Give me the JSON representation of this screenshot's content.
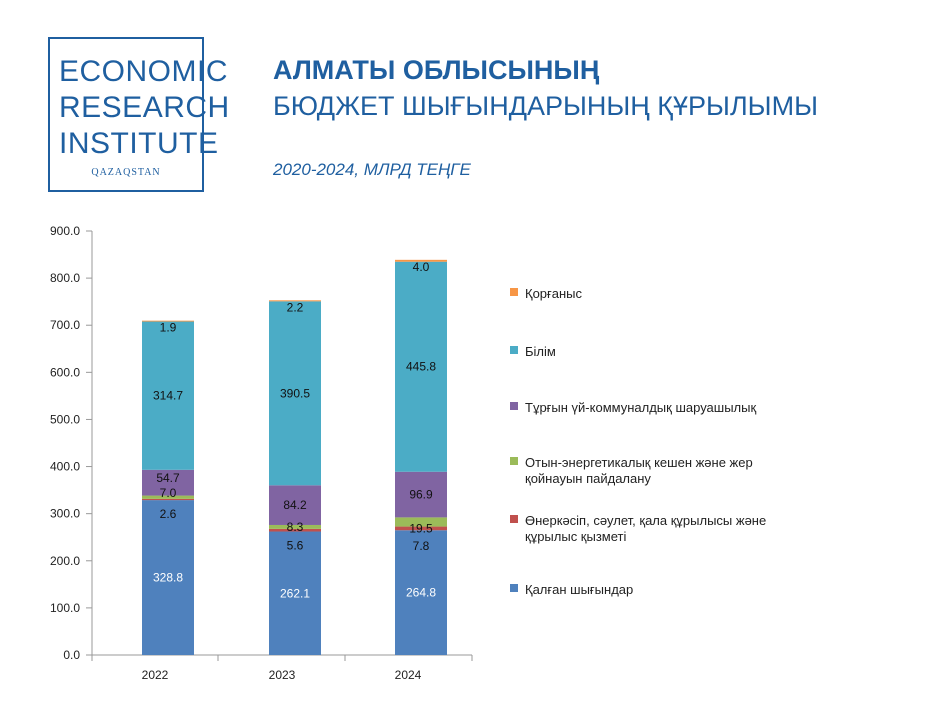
{
  "logo": {
    "line1": "ECONOMIC",
    "line2": "RESEARCH",
    "line3": "INSTITUTE",
    "sub": "QAZAQSTAN"
  },
  "title": {
    "line1": "АЛМАТЫ ОБЛЫСЫНЫҢ",
    "line2": "БЮДЖЕТ ШЫҒЫНДАРЫНЫҢ ҚҰРЫЛЫМЫ",
    "subtitle": "2020-2024, МЛРД ТЕҢГЕ"
  },
  "colors": {
    "other": "#4f81bd",
    "industry": "#c0504d",
    "energy": "#9bbb59",
    "housing": "#8064a2",
    "education": "#4bacc6",
    "defense": "#f79646"
  },
  "chart_data": {
    "type": "bar",
    "stacked": true,
    "categories": [
      "2022",
      "2023",
      "2024"
    ],
    "ylim": [
      0,
      900
    ],
    "yticks": [
      "0.0",
      "100.0",
      "200.0",
      "300.0",
      "400.0",
      "500.0",
      "600.0",
      "700.0",
      "800.0",
      "900.0"
    ],
    "series": [
      {
        "name": "Қалған шығындар",
        "key": "other",
        "values": [
          328.8,
          262.1,
          264.8
        ],
        "labels": [
          "328.8",
          "262.1",
          "264.8"
        ]
      },
      {
        "name": "Өнеркәсіп, сәулет, қала құрылысы және құрылыс қызметі",
        "key": "industry",
        "values": [
          2.6,
          5.6,
          7.8
        ],
        "labels": [
          "2.6",
          "5.6",
          "7.8"
        ]
      },
      {
        "name": "Отын-энергетикалық кешен және жер қойнауын пайдалану",
        "key": "energy",
        "values": [
          7.0,
          8.3,
          19.5
        ],
        "labels": [
          "7.0",
          "8.3",
          "19.5"
        ]
      },
      {
        "name": "Тұрғын үй-коммуналдық шаруашылық",
        "key": "housing",
        "values": [
          54.7,
          84.2,
          96.9
        ],
        "labels": [
          "54.7",
          "84.2",
          "96.9"
        ]
      },
      {
        "name": "Білім",
        "key": "education",
        "values": [
          314.7,
          390.5,
          445.8
        ],
        "labels": [
          "314.7",
          "390.5",
          "445.8"
        ]
      },
      {
        "name": "Қорғаныс",
        "key": "defense",
        "values": [
          1.9,
          2.2,
          4.0
        ],
        "labels": [
          "1.9",
          "2.2",
          "4.0"
        ]
      }
    ],
    "legend_order": [
      "defense",
      "education",
      "housing",
      "energy",
      "industry",
      "other"
    ],
    "legend": "right",
    "grid": false
  }
}
